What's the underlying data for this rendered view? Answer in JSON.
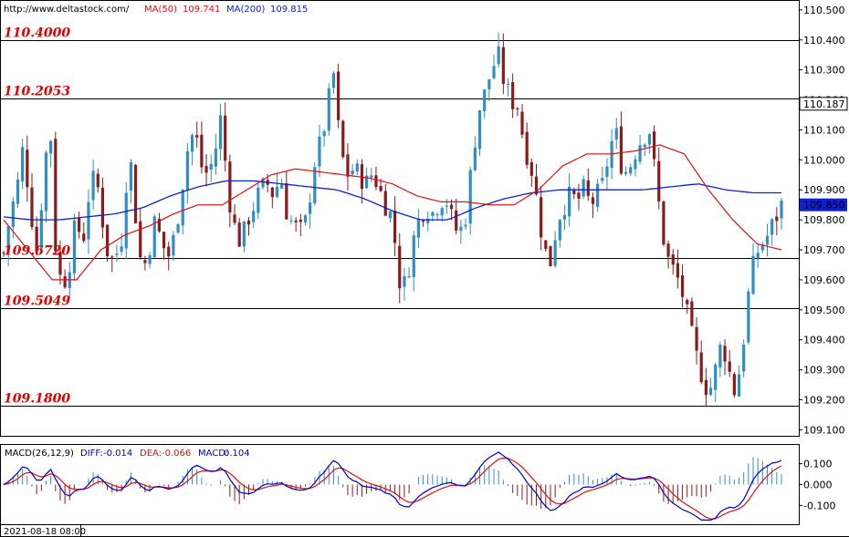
{
  "header": {
    "url": "http://www.deltastock.com/",
    "ma50_label": "MA(50)",
    "ma50_value": "109.741",
    "ma200_label": "MA(200)",
    "ma200_value": "109.815"
  },
  "macd_header": {
    "name": "MACD(26,12,9)",
    "diff_label": "DIFF:",
    "diff_value": "-0.014",
    "dea_label": "DEA:",
    "dea_value": "-0.066",
    "macd_label": "MACD:",
    "macd_value": "0.104"
  },
  "date_label": "2021-08-18 08:00",
  "colors": {
    "up": "#2e8fc7",
    "down": "#8b1a1a",
    "ma50": "#e01010",
    "ma200": "#1020d0",
    "level_text": "#e00000",
    "diff": "#0000cc",
    "dea": "#e01010"
  },
  "chart_data": {
    "type": "candlestick",
    "price_axis": {
      "ylim": [
        109.08,
        110.53
      ],
      "ticks": [
        "110.500",
        "110.400",
        "110.300",
        "110.200",
        "110.100",
        "110.000",
        "109.900",
        "109.800",
        "109.700",
        "109.600",
        "109.500",
        "109.400",
        "109.300",
        "109.200",
        "109.100"
      ],
      "tick_values": [
        110.5,
        110.4,
        110.3,
        110.2,
        110.1,
        110.0,
        109.9,
        109.8,
        109.7,
        109.6,
        109.5,
        109.4,
        109.3,
        109.2,
        109.1
      ]
    },
    "levels": [
      {
        "label": "110.4000",
        "value": 110.4
      },
      {
        "label": "110.2053",
        "value": 110.2053
      },
      {
        "label": "109.6720",
        "value": 109.672
      },
      {
        "label": "109.5049",
        "value": 109.5049
      },
      {
        "label": "109.1800",
        "value": 109.18
      }
    ],
    "price_markers": [
      {
        "label": "110.187",
        "value": 110.187,
        "style": "outline"
      },
      {
        "label": "109.850",
        "value": 109.85,
        "style": "filled"
      }
    ],
    "close_path": [
      109.69,
      109.82,
      109.9,
      110.05,
      109.85,
      109.7,
      109.92,
      110.15,
      109.65,
      109.58,
      109.66,
      109.8,
      109.72,
      109.9,
      109.95,
      109.8,
      109.66,
      109.68,
      109.75,
      110.05,
      109.82,
      109.62,
      109.7,
      109.8,
      109.72,
      109.68,
      109.75,
      109.9,
      110.05,
      110.1,
      109.98,
      109.95,
      110.02,
      110.15,
      109.9,
      109.78,
      109.72,
      109.8,
      109.85,
      109.9,
      109.92,
      109.88,
      109.95,
      109.82,
      109.78,
      109.76,
      109.8,
      109.98,
      110.05,
      110.15,
      110.3,
      110.05,
      109.95,
      109.97,
      109.95,
      109.92,
      109.96,
      109.9,
      109.85,
      109.8,
      109.6,
      109.58,
      109.72,
      109.8,
      109.85,
      109.82,
      109.86,
      109.88,
      109.8,
      109.75,
      109.8,
      109.98,
      110.16,
      110.22,
      110.3,
      110.35,
      110.25,
      110.2,
      110.18,
      110.05,
      109.98,
      109.85,
      109.7,
      109.66,
      109.8,
      109.85,
      109.88,
      109.86,
      109.9,
      109.85,
      109.88,
      109.92,
      110.05,
      110.08,
      109.95,
      109.98,
      110.04,
      110.08,
      110.1,
      109.92,
      109.75,
      109.65,
      109.62,
      109.55,
      109.45,
      109.35,
      109.28,
      109.22,
      109.3,
      109.4,
      109.3,
      109.22,
      109.35,
      109.55,
      109.68,
      109.72,
      109.75,
      109.8,
      109.85
    ],
    "candle_count": 166,
    "ma50": [
      109.8,
      109.7,
      109.6,
      109.6,
      109.7,
      109.75,
      109.78,
      109.82,
      109.85,
      109.85,
      109.9,
      109.95,
      109.97,
      109.96,
      109.95,
      109.94,
      109.92,
      109.88,
      109.86,
      109.86,
      109.85,
      109.85,
      109.9,
      109.98,
      110.02,
      110.02,
      110.03,
      110.05,
      110.02,
      109.9,
      109.8,
      109.72,
      109.7
    ],
    "ma200": [
      109.81,
      109.8,
      109.8,
      109.81,
      109.82,
      109.84,
      109.88,
      109.91,
      109.93,
      109.93,
      109.92,
      109.91,
      109.9,
      109.87,
      109.83,
      109.8,
      109.8,
      109.84,
      109.87,
      109.89,
      109.9,
      109.9,
      109.9,
      109.9,
      109.91,
      109.92,
      109.9,
      109.89,
      109.89
    ],
    "macd_axis": {
      "ylim": [
        -0.19,
        0.19
      ],
      "ticks": [
        "0.100",
        "0.000",
        "-0.100"
      ],
      "tick_values": [
        0.1,
        0.0,
        -0.1
      ]
    }
  }
}
